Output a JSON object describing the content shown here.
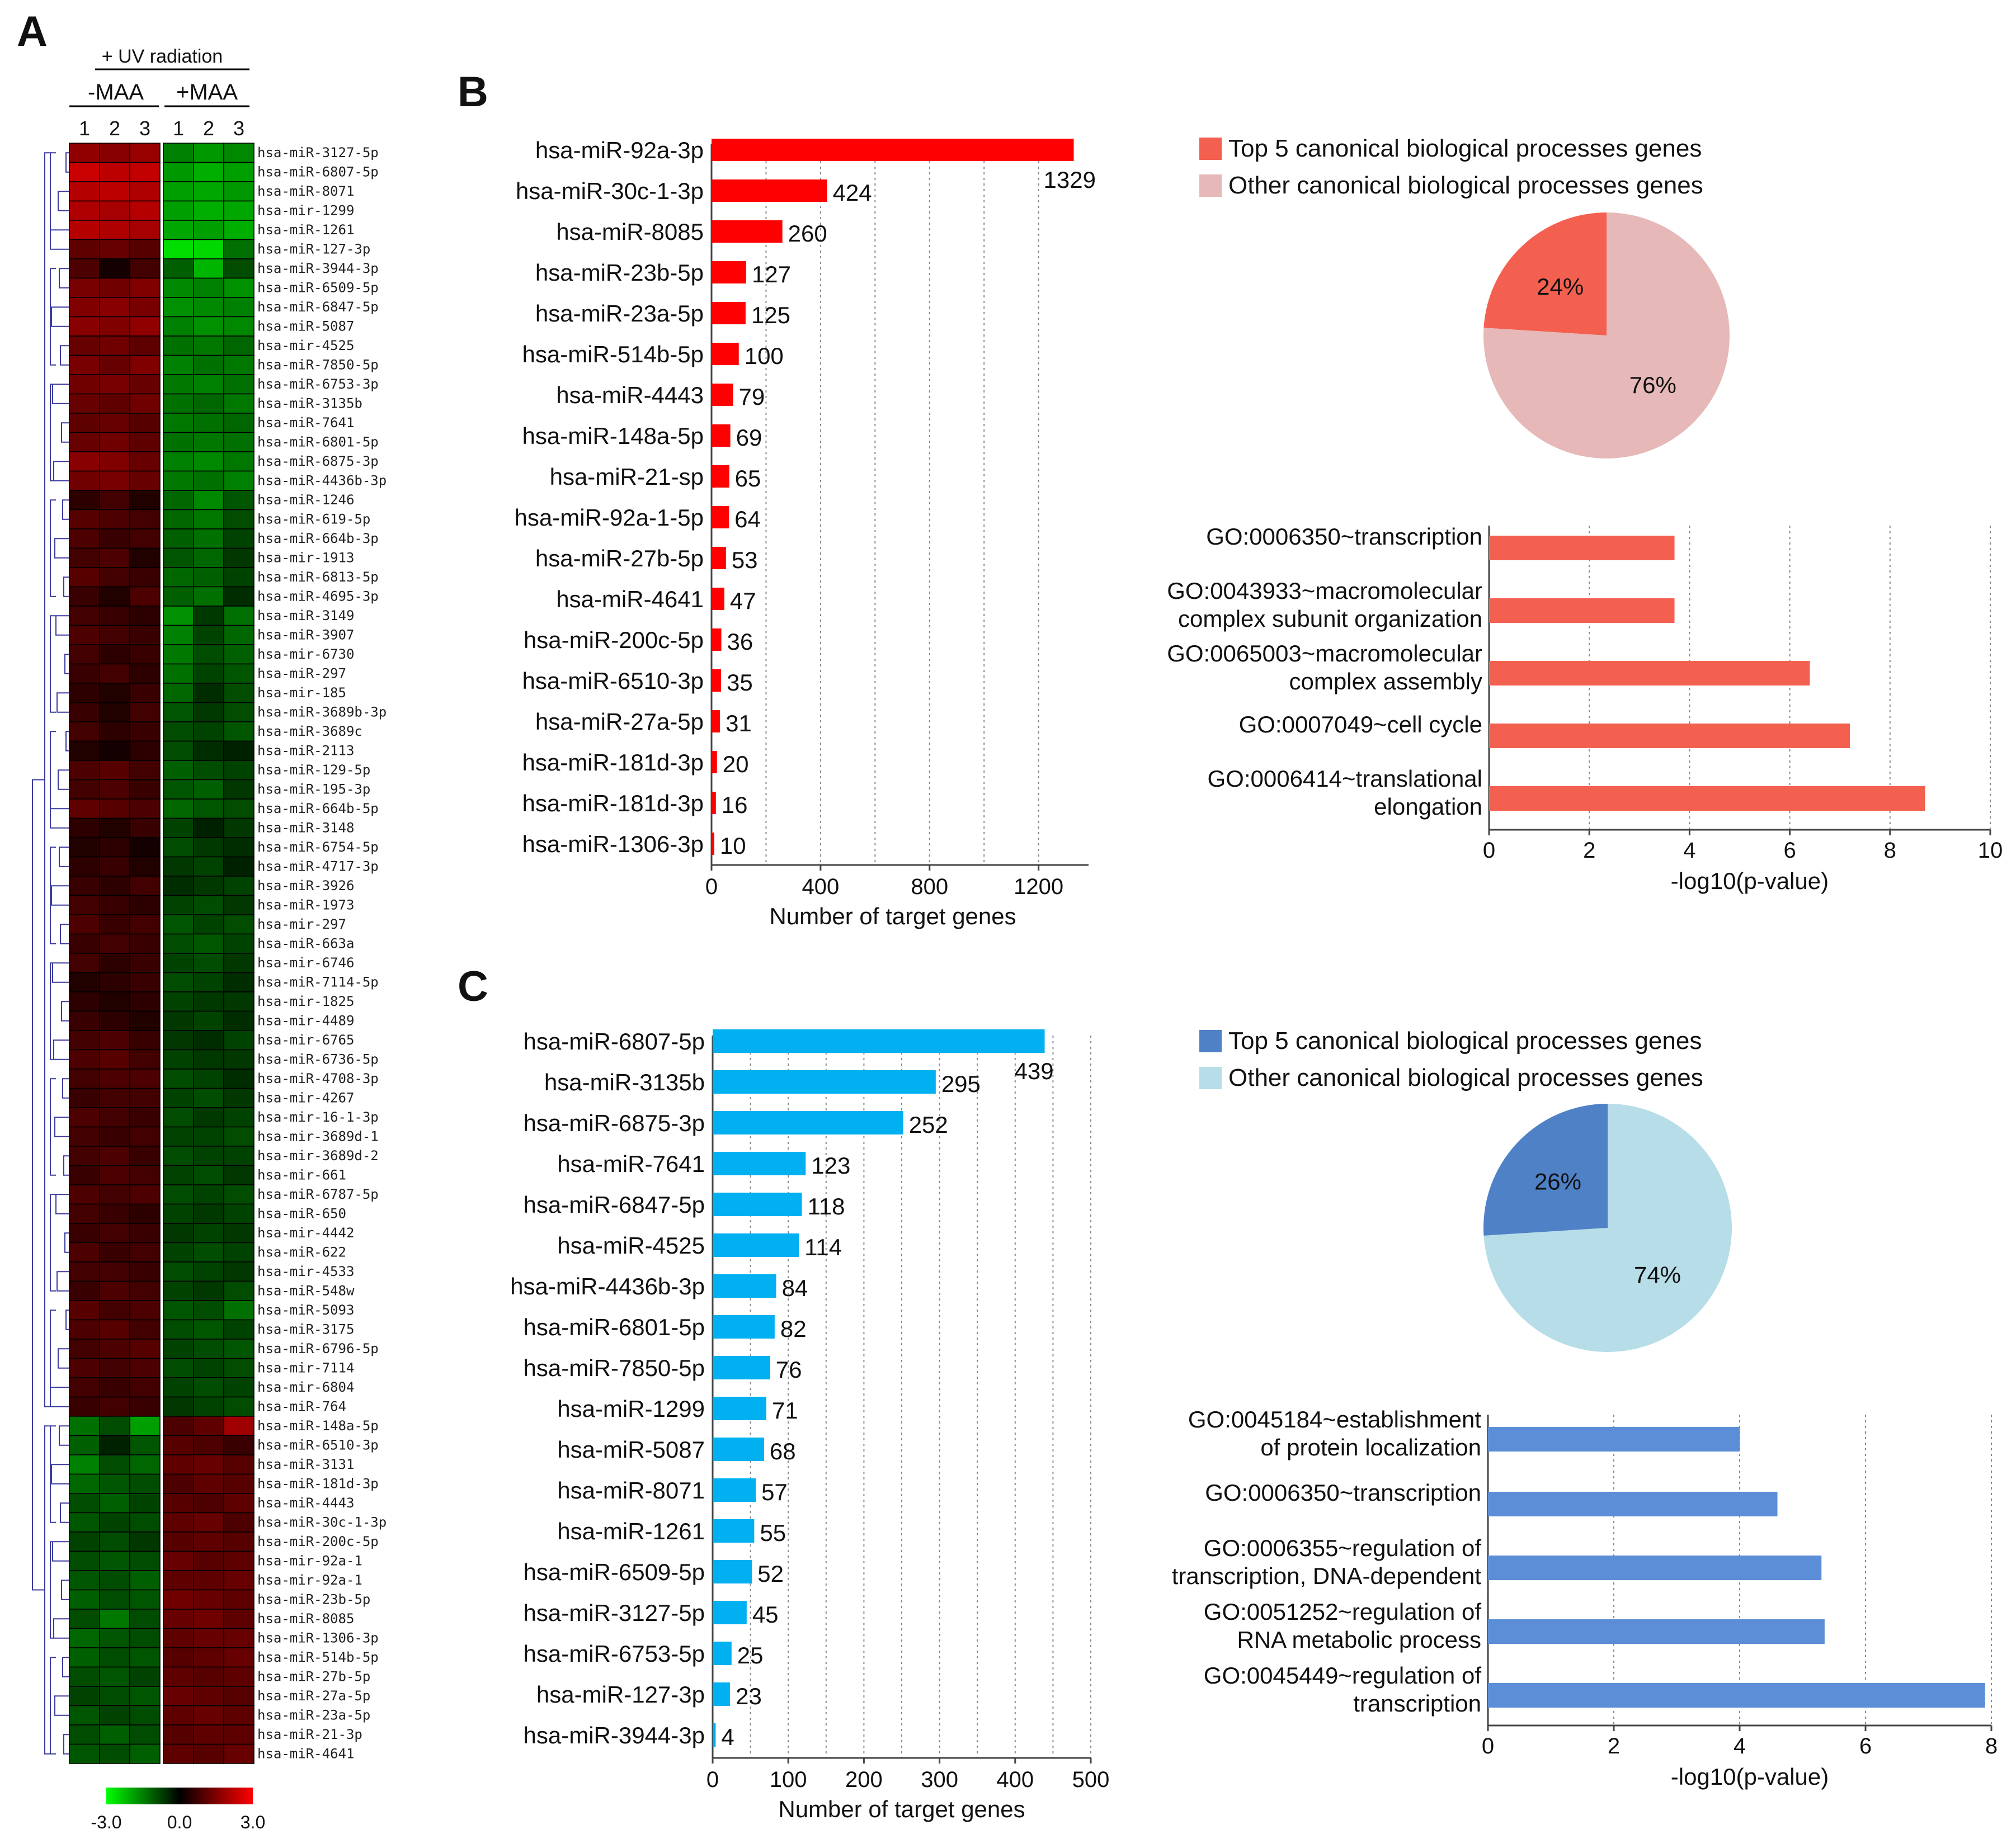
{
  "panels": {
    "a": "A",
    "b": "B",
    "c": "C"
  },
  "heatmap": {
    "header": "+ UV radiation",
    "group_minus": "-MAA",
    "group_plus": "+MAA",
    "replicates": [
      "1",
      "2",
      "3",
      "1",
      "2",
      "3"
    ],
    "colorbar": {
      "min": "-3.0",
      "mid": "0.0",
      "max": "3.0",
      "low_color": "#00ff00",
      "mid_color": "#000000",
      "high_color": "#ff0000"
    },
    "rows": [
      {
        "name": "hsa-miR-3127-5p",
        "values": [
          1.4,
          1.3,
          1.5,
          -1.2,
          -1.5,
          -1.3
        ]
      },
      {
        "name": "hsa-miR-6807-5p",
        "values": [
          2.2,
          2.0,
          2.1,
          -1.5,
          -1.8,
          -1.6
        ]
      },
      {
        "name": "hsa-miR-8071",
        "values": [
          1.9,
          2.0,
          1.8,
          -1.6,
          -1.7,
          -1.5
        ]
      },
      {
        "name": "hsa-mir-1299",
        "values": [
          1.8,
          1.7,
          1.9,
          -1.6,
          -1.8,
          -1.7
        ]
      },
      {
        "name": "hsa-miR-1261",
        "values": [
          1.9,
          1.8,
          1.7,
          -1.7,
          -1.6,
          -1.8
        ]
      },
      {
        "name": "hsa-miR-127-3p",
        "values": [
          0.8,
          0.9,
          0.7,
          -2.5,
          -2.4,
          -1.0
        ]
      },
      {
        "name": "hsa-miR-3944-3p",
        "values": [
          0.6,
          0.1,
          0.5,
          -0.8,
          -1.9,
          -0.6
        ]
      },
      {
        "name": "hsa-miR-6509-5p",
        "values": [
          1.1,
          1.0,
          1.2,
          -1.3,
          -1.2,
          -1.4
        ]
      },
      {
        "name": "hsa-miR-6847-5p",
        "values": [
          1.2,
          1.3,
          1.1,
          -1.4,
          -1.3,
          -1.2
        ]
      },
      {
        "name": "hsa-miR-5087",
        "values": [
          1.3,
          1.2,
          1.4,
          -1.2,
          -1.4,
          -1.3
        ]
      },
      {
        "name": "hsa-mir-4525",
        "values": [
          0.9,
          1.0,
          0.8,
          -1.0,
          -1.1,
          -0.9
        ]
      },
      {
        "name": "hsa-miR-7850-5p",
        "values": [
          1.1,
          0.9,
          1.2,
          -1.2,
          -1.0,
          -1.1
        ]
      },
      {
        "name": "hsa-miR-6753-3p",
        "values": [
          1.0,
          1.1,
          0.9,
          -1.1,
          -1.2,
          -1.0
        ]
      },
      {
        "name": "hsa-miR-3135b",
        "values": [
          0.9,
          0.8,
          1.0,
          -1.0,
          -0.9,
          -1.1
        ]
      },
      {
        "name": "hsa-miR-7641",
        "values": [
          0.8,
          0.9,
          0.7,
          -1.1,
          -1.0,
          -0.9
        ]
      },
      {
        "name": "hsa-miR-6801-5p",
        "values": [
          0.9,
          1.0,
          0.8,
          -1.0,
          -1.1,
          -1.0
        ]
      },
      {
        "name": "hsa-miR-6875-3p",
        "values": [
          1.3,
          1.2,
          0.9,
          -1.2,
          -1.3,
          -1.1
        ]
      },
      {
        "name": "hsa-miR-4436b-3p",
        "values": [
          1.0,
          1.1,
          0.9,
          -1.1,
          -1.0,
          -1.2
        ]
      },
      {
        "name": "hsa-miR-1246",
        "values": [
          0.3,
          0.5,
          0.2,
          -0.9,
          -1.3,
          -0.7
        ]
      },
      {
        "name": "hsa-miR-619-5p",
        "values": [
          0.7,
          0.6,
          0.5,
          -0.9,
          -1.1,
          -0.6
        ]
      },
      {
        "name": "hsa-miR-664b-3p",
        "values": [
          0.6,
          0.4,
          0.5,
          -0.8,
          -1.0,
          -0.5
        ]
      },
      {
        "name": "hsa-mir-1913",
        "values": [
          0.5,
          0.6,
          0.2,
          -0.7,
          -0.9,
          -0.4
        ]
      },
      {
        "name": "hsa-miR-6813-5p",
        "values": [
          0.7,
          0.5,
          0.4,
          -0.9,
          -0.8,
          -0.5
        ]
      },
      {
        "name": "hsa-miR-4695-3p",
        "values": [
          0.4,
          0.2,
          0.6,
          -0.8,
          -1.0,
          -0.3
        ]
      },
      {
        "name": "hsa-miR-3149",
        "values": [
          0.5,
          0.4,
          0.3,
          -1.4,
          -0.4,
          -1.0
        ]
      },
      {
        "name": "hsa-miR-3907",
        "values": [
          0.6,
          0.5,
          0.4,
          -1.2,
          -0.5,
          -0.9
        ]
      },
      {
        "name": "hsa-mir-6730",
        "values": [
          0.5,
          0.3,
          0.4,
          -1.1,
          -0.6,
          -0.8
        ]
      },
      {
        "name": "hsa-miR-297",
        "values": [
          0.4,
          0.5,
          0.3,
          -1.0,
          -0.5,
          -0.7
        ]
      },
      {
        "name": "hsa-mir-185",
        "values": [
          0.3,
          0.2,
          0.4,
          -0.9,
          -0.3,
          -0.6
        ]
      },
      {
        "name": "hsa-miR-3689b-3p",
        "values": [
          0.4,
          0.2,
          0.5,
          -0.7,
          -0.4,
          -0.6
        ]
      },
      {
        "name": "hsa-miR-3689c",
        "values": [
          0.5,
          0.3,
          0.4,
          -0.6,
          -0.5,
          -0.7
        ]
      },
      {
        "name": "hsa-miR-2113",
        "values": [
          0.2,
          0.1,
          0.3,
          -0.6,
          -0.3,
          -0.2
        ]
      },
      {
        "name": "hsa-miR-129-5p",
        "values": [
          0.6,
          0.7,
          0.5,
          -0.8,
          -0.6,
          -0.5
        ]
      },
      {
        "name": "hsa-miR-195-3p",
        "values": [
          0.5,
          0.6,
          0.4,
          -0.7,
          -0.8,
          -0.4
        ]
      },
      {
        "name": "hsa-miR-664b-5p",
        "values": [
          0.8,
          0.7,
          0.6,
          -0.9,
          -0.7,
          -0.6
        ]
      },
      {
        "name": "hsa-miR-3148",
        "values": [
          0.3,
          0.2,
          0.4,
          -0.5,
          -0.2,
          -0.4
        ]
      },
      {
        "name": "hsa-miR-6754-5p",
        "values": [
          0.2,
          0.3,
          0.1,
          -0.6,
          -0.4,
          -0.3
        ]
      },
      {
        "name": "hsa-miR-4717-3p",
        "values": [
          0.3,
          0.4,
          0.2,
          -0.4,
          -0.5,
          -0.2
        ]
      },
      {
        "name": "hsa-miR-3926",
        "values": [
          0.4,
          0.3,
          0.5,
          -0.3,
          -0.4,
          -0.5
        ]
      },
      {
        "name": "hsa-miR-1973",
        "values": [
          0.5,
          0.4,
          0.3,
          -0.5,
          -0.6,
          -0.4
        ]
      },
      {
        "name": "hsa-mir-297",
        "values": [
          0.6,
          0.4,
          0.5,
          -0.7,
          -0.5,
          -0.6
        ]
      },
      {
        "name": "hsa-miR-663a",
        "values": [
          0.4,
          0.5,
          0.4,
          -0.6,
          -0.7,
          -0.5
        ]
      },
      {
        "name": "hsa-mir-6746",
        "values": [
          0.5,
          0.3,
          0.4,
          -0.5,
          -0.6,
          -0.4
        ]
      },
      {
        "name": "hsa-miR-7114-5p",
        "values": [
          0.2,
          0.3,
          0.4,
          -0.6,
          -0.5,
          -0.3
        ]
      },
      {
        "name": "hsa-mir-1825",
        "values": [
          0.3,
          0.2,
          0.3,
          -0.5,
          -0.4,
          -0.4
        ]
      },
      {
        "name": "hsa-mir-4489",
        "values": [
          0.4,
          0.3,
          0.2,
          -0.4,
          -0.5,
          -0.3
        ]
      },
      {
        "name": "hsa-mir-6765",
        "values": [
          0.5,
          0.6,
          0.4,
          -0.4,
          -0.3,
          -0.5
        ]
      },
      {
        "name": "hsa-miR-6736-5p",
        "values": [
          0.6,
          0.7,
          0.5,
          -0.5,
          -0.4,
          -0.4
        ]
      },
      {
        "name": "hsa-miR-4708-3p",
        "values": [
          0.5,
          0.6,
          0.6,
          -0.6,
          -0.5,
          -0.3
        ]
      },
      {
        "name": "hsa-mir-4267",
        "values": [
          0.4,
          0.5,
          0.5,
          -0.5,
          -0.6,
          -0.4
        ]
      },
      {
        "name": "hsa-mir-16-1-3p",
        "values": [
          0.6,
          0.5,
          0.4,
          -0.6,
          -0.4,
          -0.5
        ]
      },
      {
        "name": "hsa-mir-3689d-1",
        "values": [
          0.5,
          0.4,
          0.5,
          -0.5,
          -0.5,
          -0.6
        ]
      },
      {
        "name": "hsa-mir-3689d-2",
        "values": [
          0.5,
          0.6,
          0.4,
          -0.6,
          -0.5,
          -0.5
        ]
      },
      {
        "name": "hsa-mir-661",
        "values": [
          0.4,
          0.6,
          0.5,
          -0.5,
          -0.6,
          -0.4
        ]
      },
      {
        "name": "hsa-miR-6787-5p",
        "values": [
          0.6,
          0.5,
          0.6,
          -0.6,
          -0.5,
          -0.6
        ]
      },
      {
        "name": "hsa-miR-650",
        "values": [
          0.5,
          0.4,
          0.3,
          -0.5,
          -0.4,
          -0.5
        ]
      },
      {
        "name": "hsa-mir-4442",
        "values": [
          0.4,
          0.5,
          0.4,
          -0.4,
          -0.5,
          -0.4
        ]
      },
      {
        "name": "hsa-miR-622",
        "values": [
          0.6,
          0.4,
          0.5,
          -0.5,
          -0.6,
          -0.5
        ]
      },
      {
        "name": "hsa-mir-4533",
        "values": [
          0.5,
          0.5,
          0.4,
          -0.6,
          -0.5,
          -0.4
        ]
      },
      {
        "name": "hsa-miR-548w",
        "values": [
          0.4,
          0.6,
          0.5,
          -0.5,
          -0.4,
          -0.6
        ]
      },
      {
        "name": "hsa-miR-5093",
        "values": [
          0.7,
          0.5,
          0.6,
          -0.7,
          -0.6,
          -1.0
        ]
      },
      {
        "name": "hsa-miR-3175",
        "values": [
          0.6,
          0.7,
          0.5,
          -0.6,
          -0.7,
          -0.5
        ]
      },
      {
        "name": "hsa-miR-6796-5p",
        "values": [
          0.5,
          0.6,
          0.7,
          -0.5,
          -0.6,
          -0.7
        ]
      },
      {
        "name": "hsa-mir-7114",
        "values": [
          0.6,
          0.5,
          0.6,
          -0.6,
          -0.5,
          -0.6
        ]
      },
      {
        "name": "hsa-mir-6804",
        "values": [
          0.5,
          0.4,
          0.5,
          -0.5,
          -0.6,
          -0.5
        ]
      },
      {
        "name": "hsa-miR-764",
        "values": [
          0.4,
          0.5,
          0.4,
          -0.4,
          -0.5,
          -0.6
        ]
      },
      {
        "name": "hsa-miR-148a-5p",
        "values": [
          -1.0,
          -0.6,
          -1.6,
          0.6,
          0.8,
          1.6
        ]
      },
      {
        "name": "hsa-miR-6510-3p",
        "values": [
          -0.8,
          -0.2,
          -0.7,
          0.7,
          0.6,
          0.4
        ]
      },
      {
        "name": "hsa-miR-3131",
        "values": [
          -1.2,
          -0.6,
          -0.9,
          0.8,
          0.9,
          0.7
        ]
      },
      {
        "name": "hsa-miR-181d-3p",
        "values": [
          -0.9,
          -0.7,
          -0.6,
          0.6,
          0.8,
          0.7
        ]
      },
      {
        "name": "hsa-miR-4443",
        "values": [
          -0.6,
          -0.8,
          -0.5,
          0.7,
          0.6,
          0.8
        ]
      },
      {
        "name": "hsa-miR-30c-1-3p",
        "values": [
          -0.7,
          -0.5,
          -0.6,
          0.8,
          0.9,
          0.6
        ]
      },
      {
        "name": "hsa-miR-200c-5p",
        "values": [
          -0.5,
          -0.6,
          -0.4,
          0.7,
          0.8,
          0.7
        ]
      },
      {
        "name": "hsa-mir-92a-1",
        "values": [
          -0.6,
          -0.7,
          -0.6,
          0.9,
          0.7,
          0.8
        ]
      },
      {
        "name": "hsa-mir-92a-1",
        "values": [
          -0.7,
          -0.6,
          -0.8,
          0.8,
          0.8,
          0.9
        ]
      },
      {
        "name": "hsa-miR-23b-5p",
        "values": [
          -0.8,
          -0.6,
          -0.7,
          1.0,
          0.9,
          0.8
        ]
      },
      {
        "name": "hsa-miR-8085",
        "values": [
          -0.6,
          -1.1,
          -0.6,
          0.9,
          1.0,
          0.8
        ]
      },
      {
        "name": "hsa-miR-1306-3p",
        "values": [
          -0.9,
          -0.7,
          -0.6,
          0.8,
          0.9,
          0.9
        ]
      },
      {
        "name": "hsa-miR-514b-5p",
        "values": [
          -0.8,
          -0.6,
          -0.7,
          0.7,
          0.8,
          0.9
        ]
      },
      {
        "name": "hsa-miR-27b-5p",
        "values": [
          -0.6,
          -0.7,
          -0.5,
          0.8,
          0.7,
          0.8
        ]
      },
      {
        "name": "hsa-miR-27a-5p",
        "values": [
          -0.5,
          -0.6,
          -0.7,
          0.9,
          0.8,
          0.7
        ]
      },
      {
        "name": "hsa-miR-23a-5p",
        "values": [
          -0.7,
          -0.5,
          -0.6,
          0.8,
          0.9,
          0.8
        ]
      },
      {
        "name": "hsa-miR-21-3p",
        "values": [
          -0.6,
          -0.8,
          -0.6,
          0.7,
          0.8,
          0.8
        ]
      },
      {
        "name": "hsa-miR-4641",
        "values": [
          -0.7,
          -0.6,
          -0.8,
          0.8,
          0.7,
          0.9
        ]
      }
    ]
  },
  "chart_data": [
    {
      "type": "bar",
      "orientation": "horizontal",
      "panel": "B",
      "categories": [
        "hsa-miR-92a-3p",
        "hsa-miR-30c-1-3p",
        "hsa-miR-8085",
        "hsa-miR-23b-5p",
        "hsa-miR-23a-5p",
        "hsa-miR-514b-5p",
        "hsa-miR-4443",
        "hsa-miR-148a-5p",
        "hsa-miR-21-sp",
        "hsa-miR-92a-1-5p",
        "hsa-miR-27b-5p",
        "hsa-miR-4641",
        "hsa-miR-200c-5p",
        "hsa-miR-6510-3p",
        "hsa-miR-27a-5p",
        "hsa-miR-181d-3p",
        "hsa-miR-181d-3p",
        "hsa-miR-1306-3p"
      ],
      "values": [
        1329,
        424,
        260,
        127,
        125,
        100,
        79,
        69,
        65,
        64,
        53,
        47,
        36,
        35,
        31,
        20,
        16,
        10
      ],
      "xlabel": "Number of target genes",
      "xticks": [
        0,
        400,
        800,
        1200
      ],
      "xlim": [
        0,
        1330
      ],
      "color": "#ff0000"
    },
    {
      "type": "pie",
      "panel": "B",
      "labels": [
        "Top 5 canonical biological processes genes",
        "Other canonical biological processes genes"
      ],
      "values": [
        24,
        76
      ],
      "value_labels": [
        "24%",
        "76%"
      ],
      "colors": [
        "#f46050",
        "#e6b8b8"
      ]
    },
    {
      "type": "bar",
      "orientation": "horizontal",
      "panel": "B",
      "categories": [
        [
          "GO:0006350~transcription"
        ],
        [
          "GO:0043933~macromolecular",
          "complex subunit organization"
        ],
        [
          "GO:0065003~macromolecular",
          "complex assembly"
        ],
        [
          "GO:0007049~cell cycle"
        ],
        [
          "GO:0006414~translational",
          "elongation"
        ]
      ],
      "values": [
        3.7,
        3.7,
        6.4,
        7.2,
        8.7
      ],
      "xlabel": "-log10(p-value)",
      "xticks": [
        0,
        2,
        4,
        6,
        8,
        10
      ],
      "xlim": [
        0,
        10
      ],
      "color": "#f46050"
    },
    {
      "type": "bar",
      "orientation": "horizontal",
      "panel": "C",
      "categories": [
        "hsa-miR-6807-5p",
        "hsa-miR-3135b",
        "hsa-miR-6875-3p",
        "hsa-miR-7641",
        "hsa-miR-6847-5p",
        "hsa-miR-4525",
        "hsa-miR-4436b-3p",
        "hsa-miR-6801-5p",
        "hsa-miR-7850-5p",
        "hsa-miR-1299",
        "hsa-miR-5087",
        "hsa-miR-8071",
        "hsa-miR-1261",
        "hsa-miR-6509-5p",
        "hsa-miR-3127-5p",
        "hsa-miR-6753-5p",
        "hsa-miR-127-3p",
        "hsa-miR-3944-3p"
      ],
      "values": [
        439,
        295,
        252,
        123,
        118,
        114,
        84,
        82,
        76,
        71,
        68,
        57,
        55,
        52,
        45,
        25,
        23,
        4
      ],
      "xlabel": "Number of target genes",
      "xticks": [
        0,
        100,
        200,
        300,
        400,
        500
      ],
      "xlim": [
        0,
        500
      ],
      "color": "#00b0f0"
    },
    {
      "type": "pie",
      "panel": "C",
      "labels": [
        "Top 5 canonical biological processes genes",
        "Other canonical biological processes genes"
      ],
      "values": [
        26,
        74
      ],
      "value_labels": [
        "26%",
        "74%"
      ],
      "colors": [
        "#4f81c7",
        "#b7dde8"
      ]
    },
    {
      "type": "bar",
      "orientation": "horizontal",
      "panel": "C",
      "categories": [
        [
          "GO:0045184~establishment",
          "of protein localization"
        ],
        [
          "GO:0006350~transcription"
        ],
        [
          "GO:0006355~regulation of",
          "transcription, DNA-dependent"
        ],
        [
          "GO:0051252~regulation of",
          "RNA metabolic process"
        ],
        [
          "GO:0045449~regulation of",
          "transcription"
        ]
      ],
      "values": [
        4.0,
        4.6,
        5.3,
        5.35,
        7.9
      ],
      "xlabel": "-log10(p-value)",
      "xticks": [
        0,
        2,
        4,
        6,
        8
      ],
      "xlim": [
        0,
        8
      ],
      "color": "#5b8ed6"
    }
  ]
}
